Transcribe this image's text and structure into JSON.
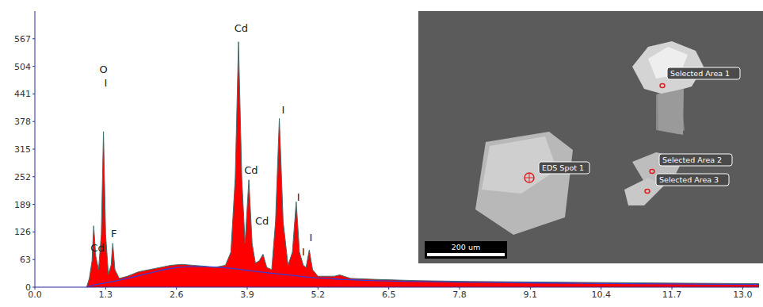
{
  "chart_data": {
    "type": "area",
    "x": [
      0.95,
      1.0,
      1.05,
      1.08,
      1.12,
      1.17,
      1.22,
      1.26,
      1.3,
      1.35,
      1.4,
      1.43,
      1.47,
      1.55,
      1.7,
      1.9,
      2.1,
      2.3,
      2.5,
      2.7,
      2.9,
      3.1,
      3.3,
      3.5,
      3.6,
      3.68,
      3.74,
      3.8,
      3.86,
      3.93,
      3.99,
      4.05,
      4.12,
      4.19,
      4.26,
      4.35,
      4.42,
      4.49,
      4.56,
      4.65,
      4.73,
      4.8,
      4.86,
      4.93,
      4.98,
      5.04,
      5.1,
      5.2,
      5.5,
      5.6,
      5.8,
      6.2,
      7.0,
      8.0,
      9.0,
      10.0,
      11.0,
      12.0,
      13.3
    ],
    "series": [
      {
        "type": "area",
        "color": "#ff0000",
        "values": [
          0,
          20,
          60,
          140,
          70,
          40,
          120,
          355,
          120,
          30,
          50,
          100,
          40,
          20,
          25,
          35,
          40,
          45,
          50,
          52,
          50,
          48,
          45,
          50,
          80,
          250,
          560,
          250,
          100,
          245,
          100,
          55,
          60,
          75,
          45,
          40,
          150,
          385,
          150,
          50,
          80,
          195,
          80,
          50,
          45,
          85,
          40,
          25,
          25,
          28,
          20,
          18,
          15,
          13,
          12,
          11,
          10,
          9,
          8
        ]
      },
      {
        "type": "line",
        "color": "#3b3bd0",
        "values": [
          0,
          2,
          4,
          5,
          6,
          7,
          8,
          9,
          10,
          11,
          12,
          13,
          14,
          16,
          20,
          26,
          32,
          38,
          43,
          46,
          47,
          47,
          46,
          44,
          43,
          42,
          41,
          40,
          39,
          38,
          37,
          36,
          35,
          34,
          33,
          32,
          31,
          30,
          29,
          28,
          27,
          26,
          25,
          24,
          23,
          23,
          22,
          21,
          19,
          18,
          17,
          15,
          13,
          11,
          10,
          9,
          8,
          7,
          6
        ]
      }
    ],
    "xlim": [
      0,
      13.3
    ],
    "xticks": [
      {
        "value": 0,
        "label": "0.0"
      },
      1.3,
      2.6,
      3.9,
      5.2,
      6.5,
      7.8,
      9.1,
      10.4,
      11.7,
      {
        "value": 13,
        "label": "13.0"
      }
    ],
    "ylim": [
      0,
      630
    ],
    "yticks": [
      0,
      63,
      126,
      189,
      252,
      315,
      378,
      441,
      504,
      567
    ],
    "grid": false,
    "annotations": [
      {
        "text": "Cd",
        "x": 1.15,
        "y": 89
      },
      {
        "text": "O",
        "x": 1.26,
        "y": 498
      },
      {
        "text": "I",
        "x": 1.3,
        "y": 467
      },
      {
        "text": "F",
        "x": 1.45,
        "y": 122
      },
      {
        "text": "Cd",
        "x": 3.79,
        "y": 592
      },
      {
        "text": "Cd",
        "x": 3.97,
        "y": 267
      },
      {
        "text": "Cd",
        "x": 4.17,
        "y": 151
      },
      {
        "text": "I",
        "x": 4.56,
        "y": 405
      },
      {
        "text": "I",
        "x": 4.84,
        "y": 205
      },
      {
        "text": "I",
        "x": 4.93,
        "y": 80
      },
      {
        "text": "I",
        "x": 5.07,
        "y": 114
      }
    ]
  },
  "inset": {
    "labels": [
      "Selected Area 1",
      "Selected Area 2",
      "Selected Area 3",
      "EDS Spot 1"
    ],
    "scale_bar": "200 um"
  }
}
